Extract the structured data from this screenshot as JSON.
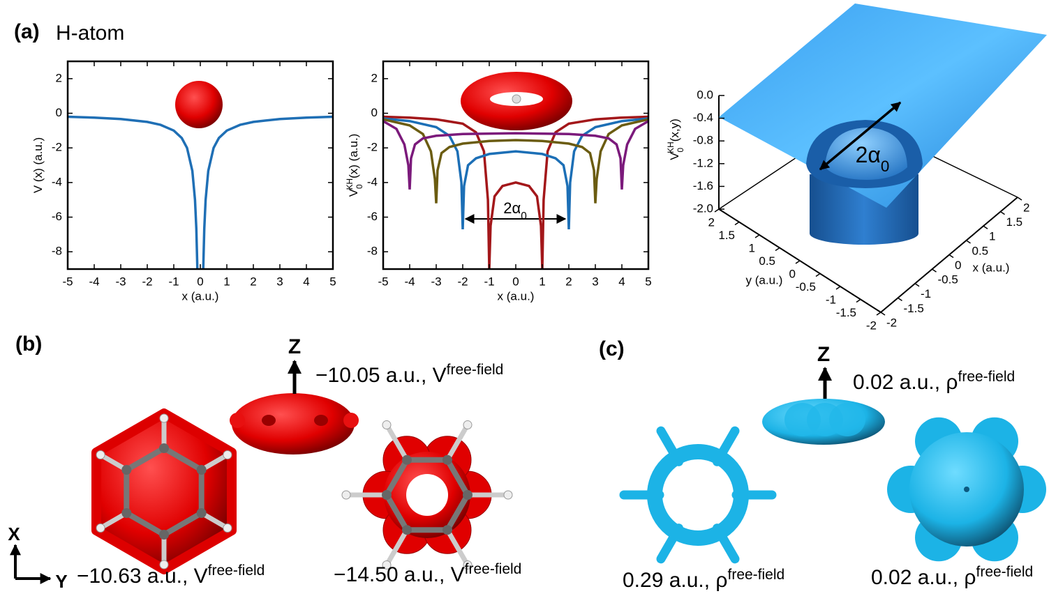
{
  "panels": {
    "a": "(a)",
    "a_title": "H-atom",
    "b": "(b)",
    "c": "(c)"
  },
  "chart_data": [
    {
      "type": "line",
      "xlabel": "x (a.u.)",
      "ylabel": {
        "base": "V (x) (a.u.)"
      },
      "xlim": [
        -5,
        5
      ],
      "ylim": [
        -9,
        3
      ],
      "xticks": [
        -5,
        -4,
        -3,
        -2,
        -1,
        0,
        1,
        2,
        3,
        4,
        5
      ],
      "yticks": [
        -8,
        -6,
        -4,
        -2,
        0,
        2
      ],
      "series": [
        {
          "color": "#1f6fb5",
          "x": [
            -5,
            -4,
            -3,
            -2,
            -1.5,
            -1,
            -0.7,
            -0.5,
            -0.3,
            -0.2,
            -0.15,
            -0.11,
            0,
            0.11,
            0.15,
            0.2,
            0.3,
            0.5,
            0.7,
            1,
            1.5,
            2,
            3,
            4,
            5
          ],
          "values": [
            -0.2,
            -0.25,
            -0.33,
            -0.5,
            -0.67,
            -1,
            -1.43,
            -2,
            -3.33,
            -5,
            -6.67,
            -9,
            null,
            -9,
            -6.67,
            -5,
            -3.33,
            -2,
            -1.43,
            -1,
            -0.67,
            -0.5,
            -0.33,
            -0.25,
            -0.2
          ]
        }
      ]
    },
    {
      "type": "line",
      "xlabel": "x (a.u.)",
      "ylabel": {
        "base": "V",
        "sub": "0",
        "sup": "KH",
        "rest": "(x) (a.u.)"
      },
      "annotation": {
        "text": "2α",
        "sub": "0"
      },
      "xlim": [
        -5,
        5
      ],
      "ylim": [
        -9,
        3
      ],
      "xticks": [
        -5,
        -4,
        -3,
        -2,
        -1,
        0,
        1,
        2,
        3,
        4,
        5
      ],
      "yticks": [
        -8,
        -6,
        -4,
        -2,
        0,
        2
      ],
      "series": [
        {
          "color": "#a3171a",
          "x": [
            -5,
            -4,
            -3,
            -2,
            -1.5,
            -1.2,
            -1.05,
            -1,
            -0.95,
            -0.8,
            -0.5,
            0,
            0.5,
            0.8,
            0.95,
            1,
            1.05,
            1.2,
            1.5,
            2,
            3,
            4,
            5
          ],
          "values": [
            -0.2,
            -0.25,
            -0.35,
            -0.6,
            -1.1,
            -2.2,
            -5,
            -9,
            -6.5,
            -4.8,
            -4.2,
            -4,
            -4.2,
            -4.8,
            -6.5,
            -9,
            -5,
            -2.2,
            -1.1,
            -0.6,
            -0.35,
            -0.25,
            -0.2
          ]
        },
        {
          "color": "#1c6fb6",
          "x": [
            -5,
            -4,
            -3,
            -2.5,
            -2.2,
            -2.05,
            -2,
            -1.95,
            -1.8,
            -1.5,
            -1,
            0,
            1,
            1.5,
            1.8,
            1.95,
            2,
            2.05,
            2.2,
            2.5,
            3,
            4,
            5
          ],
          "values": [
            -0.3,
            -0.45,
            -0.8,
            -1.3,
            -2.2,
            -4,
            -6.7,
            -4.2,
            -3,
            -2.6,
            -2.35,
            -2.2,
            -2.35,
            -2.6,
            -3,
            -4.2,
            -6.7,
            -4,
            -2.2,
            -1.3,
            -0.8,
            -0.45,
            -0.3
          ]
        },
        {
          "color": "#6b5c11",
          "x": [
            -5,
            -4,
            -3.5,
            -3.2,
            -3.05,
            -3,
            -2.95,
            -2.8,
            -2.5,
            -2,
            -1,
            0,
            1,
            2,
            2.5,
            2.8,
            2.95,
            3,
            3.05,
            3.2,
            3.5,
            4,
            5
          ],
          "values": [
            -0.35,
            -0.7,
            -1.2,
            -2.2,
            -3.8,
            -5.2,
            -3.3,
            -2.3,
            -1.95,
            -1.75,
            -1.6,
            -1.55,
            -1.6,
            -1.75,
            -1.95,
            -2.3,
            -3.3,
            -5.2,
            -3.8,
            -2.2,
            -1.2,
            -0.7,
            -0.35
          ]
        },
        {
          "color": "#7b1a7b",
          "x": [
            -5,
            -4.5,
            -4.2,
            -4.05,
            -4,
            -3.95,
            -3.8,
            -3.5,
            -3,
            -2,
            0,
            2,
            3,
            3.5,
            3.8,
            3.95,
            4,
            4.05,
            4.2,
            4.5,
            5
          ],
          "values": [
            -0.45,
            -0.9,
            -1.8,
            -3,
            -4.4,
            -2.6,
            -1.8,
            -1.45,
            -1.3,
            -1.2,
            -1.15,
            -1.2,
            -1.3,
            -1.45,
            -1.8,
            -2.6,
            -4.4,
            -3,
            -1.8,
            -0.9,
            -0.45
          ]
        }
      ]
    },
    {
      "type": "surface",
      "xlabel": "x (a.u.)",
      "ylabel": "y (a.u.)",
      "zlabel": {
        "base": "V",
        "sub": "0",
        "sup": "KH",
        "rest": "(x,y)"
      },
      "annotation": {
        "text": "2α",
        "sub": "0"
      },
      "xlim": [
        -2,
        2
      ],
      "ylim": [
        -2,
        2
      ],
      "zlim": [
        -2,
        0
      ],
      "xticks": [
        -2,
        -1.5,
        -1,
        -0.5,
        0,
        0.5,
        1,
        1.5,
        2
      ],
      "yticks": [
        -2,
        -1.5,
        -1,
        -0.5,
        0,
        0.5,
        1,
        1.5,
        2
      ],
      "zticks": [
        {
          "value": 0,
          "label": "0.0"
        },
        -0.4,
        -0.8,
        -1.2,
        -1.6,
        {
          "value": -2,
          "label": "-2.0"
        }
      ]
    }
  ],
  "labels": {
    "b_top": {
      "text": "−10.05 a.u., V",
      "sup": "free-field"
    },
    "b_left": {
      "text": "−10.63 a.u., V",
      "sup": "free-field"
    },
    "b_right": {
      "text": "−14.50 a.u., V",
      "sup": "free-field"
    },
    "c_top": {
      "text": "0.02 a.u., ρ",
      "sup": "free-field"
    },
    "c_left": {
      "text": "0.29 a.u., ρ",
      "sup": "free-field"
    },
    "c_right": {
      "text": "0.02 a.u., ρ",
      "sup": "free-field"
    },
    "z_b": "Z",
    "z_c": "Z",
    "axis_x": "X",
    "axis_y": "Y"
  }
}
